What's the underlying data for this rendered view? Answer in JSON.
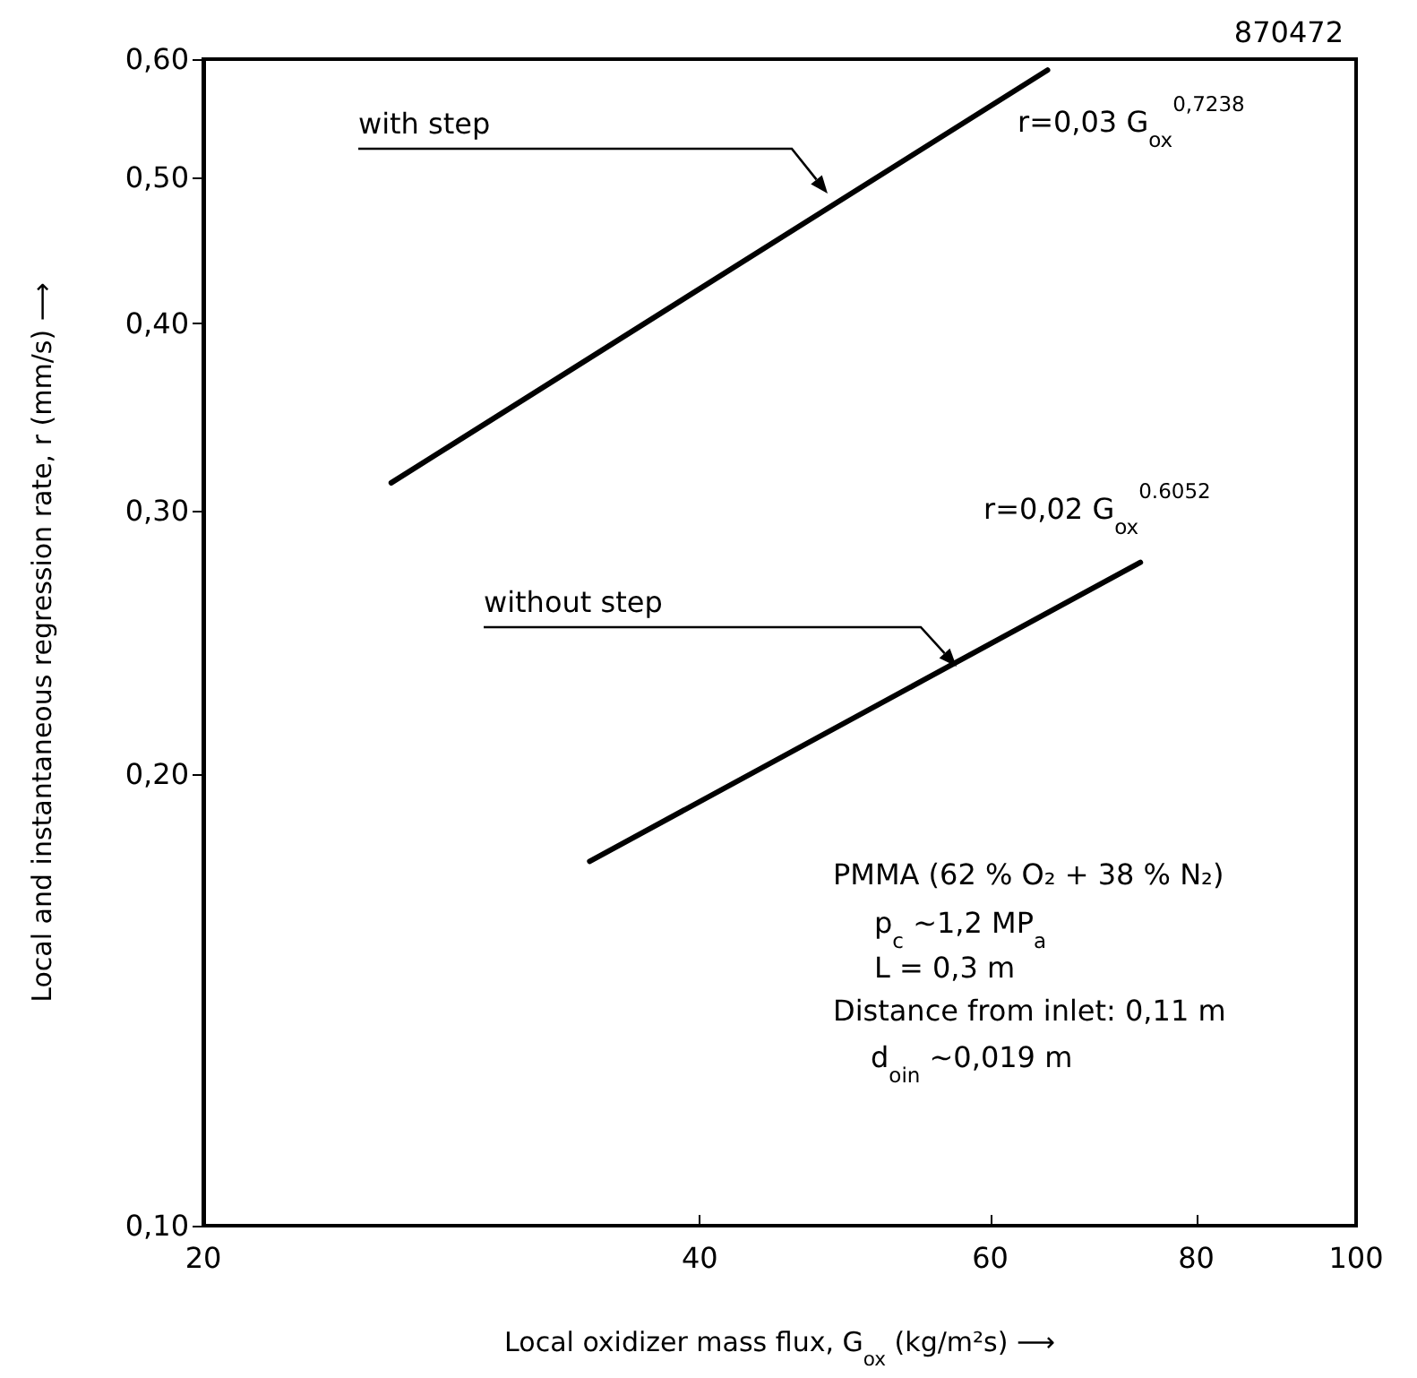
{
  "chart_data": {
    "type": "line",
    "xlabel": "Local oxidizer mass flux, G$_{ox}$ (kg/m²s) ⟶",
    "ylabel": "Local and instantaneous regression rate, r (mm/s) ⟶",
    "series": [
      {
        "x": [
          26,
          65
        ],
        "values": [
          0.313,
          0.59
        ],
        "color": "#000000"
      },
      {
        "x": [
          34.3,
          74
        ],
        "values": [
          0.175,
          0.277
        ],
        "color": "#000000"
      }
    ],
    "log": "xy",
    "xlim": [
      20,
      100
    ],
    "xticks": [
      20,
      40,
      60,
      80,
      100
    ],
    "ylim": [
      0.1,
      0.6
    ],
    "yticks": [
      {
        "value": 0.1,
        "label": "0,10"
      },
      {
        "value": 0.2,
        "label": "0,20"
      },
      {
        "value": 0.3,
        "label": "0,30"
      },
      {
        "value": 0.4,
        "label": "0,40"
      },
      {
        "value": 0.5,
        "label": "0,50"
      },
      {
        "value": 0.6,
        "label": "0,60"
      }
    ],
    "grid": false,
    "marker": "none",
    "line_style": "solid",
    "annotations": [
      "with step",
      "without step",
      "r=0,03 G$_{ox}$$^{0,7238}$",
      "r=0,02 G$_{ox}$$^{0.6052}$",
      "870472",
      "PMMA (62 % O₂ + 38 % N₂)",
      "p$_{c}$ ~1,2 MP$_{a}$",
      "L = 0,3 m",
      "Distance from inlet: 0,11 m",
      "d$_{o}$$_{in}$ ~0,019 m"
    ]
  }
}
